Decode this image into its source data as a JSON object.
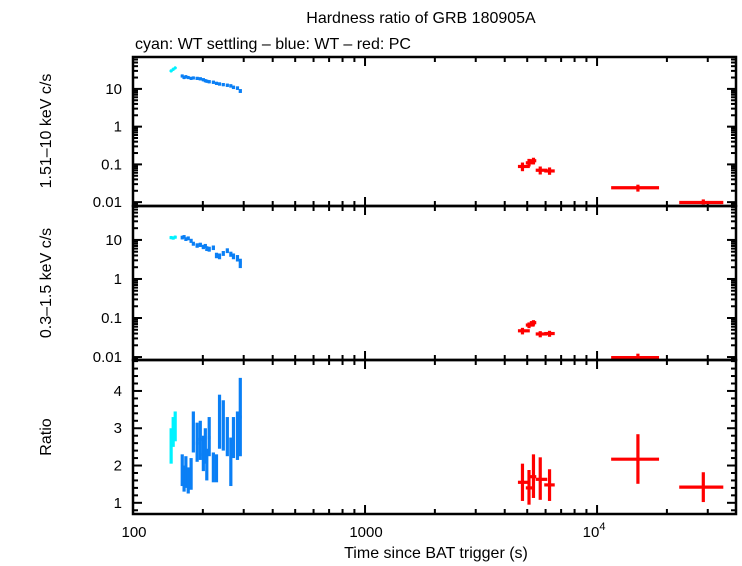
{
  "chart_data": {
    "type": "scatter",
    "title": "Hardness ratio of GRB 180905A",
    "subtitle": "cyan: WT settling – blue: WT – red: PC",
    "xlabel": "Time since BAT trigger (s)",
    "xscale": "log",
    "xlim": [
      100,
      39700
    ],
    "xticks": [
      {
        "value": 100,
        "label": "100"
      },
      {
        "value": 1000,
        "label": "1000"
      },
      {
        "value": 10000,
        "label": "10",
        "exponent": "4"
      }
    ],
    "grid": false,
    "legend": "subtitle text (top-left)",
    "panels": [
      {
        "key": "hard",
        "ylabel": "1.51–10 keV c/s",
        "yscale": "log",
        "ylim": [
          0.0079,
          70
        ],
        "yticks": [
          {
            "value": 10,
            "label": "10"
          },
          {
            "value": 1,
            "label": "1"
          },
          {
            "value": 0.1,
            "label": "0.1"
          },
          {
            "value": 0.01,
            "label": "0.01"
          }
        ]
      },
      {
        "key": "soft",
        "ylabel": "0.3–1.5 keV c/s",
        "yscale": "log",
        "ylim": [
          0.0084,
          74
        ],
        "yticks": [
          {
            "value": 10,
            "label": "10"
          },
          {
            "value": 1,
            "label": "1"
          },
          {
            "value": 0.1,
            "label": "0.1"
          },
          {
            "value": 0.01,
            "label": "0.01"
          }
        ]
      },
      {
        "key": "ratio",
        "ylabel": "Ratio",
        "yscale": "linear",
        "ylim": [
          0.7,
          4.83
        ],
        "minor_step": 0.2,
        "yticks": [
          {
            "value": 4,
            "label": "4"
          },
          {
            "value": 3,
            "label": "3"
          },
          {
            "value": 2,
            "label": "2"
          },
          {
            "value": 1,
            "label": "1"
          }
        ]
      }
    ],
    "point_format": "each field is [value, lower, upper]; t is [time, start, end] in seconds",
    "series": [
      {
        "name": "WT settling",
        "color": "#00f2ff",
        "points": [
          {
            "t": [
              146,
              144.5,
              147.5
            ],
            "hard": [
              30,
              28,
              32
            ],
            "soft": [
              11.5,
              10.5,
              12.5
            ],
            "ratio": [
              2.55,
              2.05,
              3.0
            ]
          },
          {
            "t": [
              149,
              147.5,
              150.5
            ],
            "hard": [
              33,
              31,
              35
            ],
            "soft": [
              11.2,
              10.2,
              12.2
            ],
            "ratio": [
              2.9,
              2.5,
              3.3
            ]
          },
          {
            "t": [
              152,
              150.5,
              153.5
            ],
            "hard": [
              36,
              34,
              38
            ],
            "soft": [
              11.8,
              10.8,
              12.8
            ],
            "ratio": [
              3.0,
              2.65,
              3.45
            ]
          }
        ]
      },
      {
        "name": "WT",
        "color": "#0a7ff5",
        "points": [
          {
            "t": [
              163,
              161,
              165
            ],
            "hard": [
              22,
              20,
              24
            ],
            "soft": [
              11.5,
              10.3,
              12.8
            ],
            "ratio": [
              1.85,
              1.45,
              2.3
            ]
          },
          {
            "t": [
              166,
              164,
              168
            ],
            "hard": [
              20,
              18.3,
              21.8
            ],
            "soft": [
              12,
              10.8,
              13.3
            ],
            "ratio": [
              1.6,
              1.3,
              2.0
            ]
          },
          {
            "t": [
              169,
              167,
              171
            ],
            "hard": [
              21,
              19.2,
              22.9
            ],
            "soft": [
              10.5,
              9.4,
              11.7
            ],
            "ratio": [
              1.75,
              1.4,
              2.25
            ]
          },
          {
            "t": [
              173,
              171,
              175
            ],
            "hard": [
              20,
              18.3,
              21.8
            ],
            "soft": [
              11,
              9.8,
              12.3
            ],
            "ratio": [
              1.55,
              1.25,
              1.95
            ]
          },
          {
            "t": [
              178,
              176,
              180
            ],
            "hard": [
              19,
              17.4,
              20.7
            ],
            "soft": [
              9.5,
              8.4,
              10.7
            ],
            "ratio": [
              1.7,
              1.35,
              2.2
            ]
          },
          {
            "t": [
              182,
              180,
              184
            ],
            "hard": [
              19.5,
              17.8,
              21.3
            ],
            "soft": [
              8,
              7.1,
              9
            ],
            "ratio": [
              2.95,
              2.35,
              3.45
            ]
          },
          {
            "t": [
              189,
              186,
              192
            ],
            "hard": [
              19,
              17.4,
              20.7
            ],
            "soft": [
              7.2,
              6.3,
              8.2
            ],
            "ratio": [
              2.6,
              2.1,
              3.15
            ]
          },
          {
            "t": [
              195,
              192,
              198
            ],
            "hard": [
              18.5,
              16.9,
              20.2
            ],
            "soft": [
              7.5,
              6.6,
              8.5
            ],
            "ratio": [
              2.7,
              2.15,
              3.2
            ]
          },
          {
            "t": [
              201,
              198,
              204
            ],
            "hard": [
              17.5,
              16,
              19.1
            ],
            "soft": [
              6.6,
              5.8,
              7.5
            ],
            "ratio": [
              2.3,
              1.85,
              2.8
            ]
          },
          {
            "t": [
              205,
              203,
              207
            ],
            "hard": [
              16.5,
              15,
              18
            ],
            "soft": [
              7,
              6.2,
              7.9
            ],
            "ratio": [
              2.5,
              2.05,
              3.0
            ]
          },
          {
            "t": [
              208,
              206,
              210
            ],
            "hard": [
              16,
              14.6,
              17.5
            ],
            "soft": [
              6,
              5.2,
              6.9
            ],
            "ratio": [
              2.0,
              1.6,
              2.45
            ]
          },
          {
            "t": [
              213,
              210,
              216
            ],
            "hard": [
              15.5,
              14.1,
              17
            ],
            "soft": [
              5.8,
              5.0,
              6.7
            ],
            "ratio": [
              2.75,
              2.25,
              3.3
            ]
          },
          {
            "t": [
              222,
              219,
              225
            ],
            "hard": [
              15,
              13.6,
              16.5
            ],
            "soft": [
              6.3,
              5.5,
              7.2
            ],
            "ratio": [
              2.1,
              1.55,
              2.35
            ]
          },
          {
            "t": [
              229,
              226,
              232
            ],
            "hard": [
              14,
              12.7,
              15.4
            ],
            "soft": [
              4,
              3.4,
              4.7
            ],
            "ratio": [
              1.9,
              1.55,
              2.3
            ]
          },
          {
            "t": [
              236,
              233,
              239
            ],
            "hard": [
              13.5,
              12.2,
              14.9
            ],
            "soft": [
              3.8,
              3.2,
              4.5
            ],
            "ratio": [
              3.25,
              2.45,
              3.9
            ]
          },
          {
            "t": [
              245,
              242,
              248
            ],
            "hard": [
              13,
              11.8,
              14.3
            ],
            "soft": [
              4.5,
              3.9,
              5.2
            ],
            "ratio": [
              2.75,
              2.4,
              3.75
            ]
          },
          {
            "t": [
              255,
              252,
              258
            ],
            "hard": [
              12.5,
              11.3,
              13.8
            ],
            "soft": [
              5.3,
              4.6,
              6.1
            ],
            "ratio": [
              2.75,
              2.25,
              3.3
            ]
          },
          {
            "t": [
              264,
              261,
              267
            ],
            "hard": [
              12,
              10.8,
              13.3
            ],
            "soft": [
              4.3,
              3.7,
              5.0
            ],
            "ratio": [
              1.85,
              1.45,
              2.75
            ]
          },
          {
            "t": [
              271,
              268,
              274
            ],
            "hard": [
              11,
              9.9,
              12.2
            ],
            "soft": [
              3.8,
              3.2,
              4.5
            ],
            "ratio": [
              2.75,
              2.2,
              3.3
            ]
          },
          {
            "t": [
              282,
              279,
              285
            ],
            "hard": [
              10.5,
              9.4,
              11.7
            ],
            "soft": [
              3.4,
              2.8,
              4.1
            ],
            "ratio": [
              2.75,
              2.15,
              3.45
            ]
          },
          {
            "t": [
              290,
              287,
              294
            ],
            "hard": [
              8.8,
              7.8,
              9.9
            ],
            "soft": [
              2.6,
              1.9,
              3.3
            ],
            "ratio": [
              3.3,
              2.25,
              4.35
            ]
          }
        ]
      },
      {
        "name": "PC",
        "color": "#ff0000",
        "points": [
          {
            "t": [
              4770,
              4560,
              5130
            ],
            "hard": [
              0.088,
              0.066,
              0.112
            ],
            "soft": [
              0.047,
              0.038,
              0.056
            ],
            "ratio": [
              1.55,
              1.05,
              2.05
            ]
          },
          {
            "t": [
              5090,
              4930,
              5380
            ],
            "hard": [
              0.11,
              0.088,
              0.14
            ],
            "soft": [
              0.066,
              0.055,
              0.077
            ],
            "ratio": [
              1.4,
              0.95,
              1.88
            ]
          },
          {
            "t": [
              5320,
              5130,
              5470
            ],
            "hard": [
              0.125,
              0.1,
              0.15
            ],
            "soft": [
              0.076,
              0.064,
              0.088
            ],
            "ratio": [
              1.7,
              1.13,
              2.3
            ]
          },
          {
            "t": [
              5690,
              5440,
              6100
            ],
            "hard": [
              0.07,
              0.054,
              0.088
            ],
            "soft": [
              0.039,
              0.032,
              0.046
            ],
            "ratio": [
              1.63,
              1.08,
              2.22
            ]
          },
          {
            "t": [
              6240,
              5920,
              6570
            ],
            "hard": [
              0.067,
              0.053,
              0.083
            ],
            "soft": [
              0.04,
              0.033,
              0.047
            ],
            "ratio": [
              1.48,
              1.05,
              1.9
            ]
          },
          {
            "t": [
              15000,
              11500,
              18500
            ],
            "hard": [
              0.024,
              0.019,
              0.029
            ],
            "soft": [
              0.0097,
              0.0075,
              0.0122
            ],
            "ratio": [
              2.17,
              1.51,
              2.84
            ]
          },
          {
            "t": [
              28700,
              22600,
              35000
            ],
            "hard": [
              0.0098,
              0.0087,
              0.0118
            ],
            "soft": [
              0.0075,
              0.006,
              0.0088
            ],
            "ratio": [
              1.42,
              1.02,
              1.82
            ]
          }
        ]
      }
    ]
  }
}
